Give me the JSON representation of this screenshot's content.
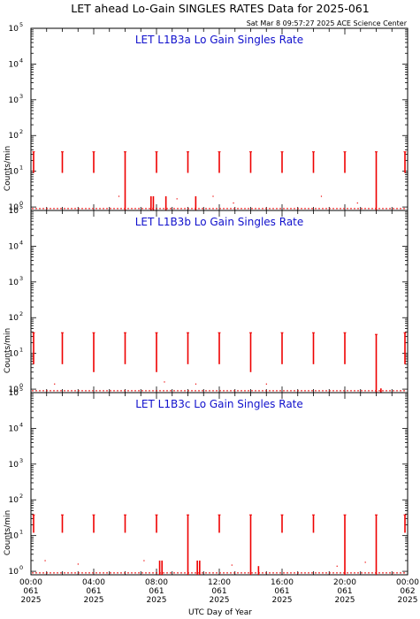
{
  "chart_data": {
    "type": "line",
    "title": "LET ahead Lo-Gain SINGLES RATES Data for 2025-061",
    "subtitle": "Sat Mar  8 09:57:27 2025 ACE Science Center",
    "xlabel": "UTC Day of Year",
    "ylabel": "Counts/min",
    "yscale": "log",
    "ylim": [
      0.8,
      100000
    ],
    "xlim": [
      0,
      24
    ],
    "y_ticks": [
      {
        "base": "10",
        "exp": "0"
      },
      {
        "base": "10",
        "exp": "1"
      },
      {
        "base": "10",
        "exp": "2"
      },
      {
        "base": "10",
        "exp": "3"
      },
      {
        "base": "10",
        "exp": "4"
      },
      {
        "base": "10",
        "exp": "5"
      }
    ],
    "x_ticks": [
      {
        "time": "00:00",
        "doy": "061",
        "year": "2025"
      },
      {
        "time": "04:00",
        "doy": "061",
        "year": "2025"
      },
      {
        "time": "08:00",
        "doy": "061",
        "year": "2025"
      },
      {
        "time": "12:00",
        "doy": "061",
        "year": "2025"
      },
      {
        "time": "16:00",
        "doy": "061",
        "year": "2025"
      },
      {
        "time": "20:00",
        "doy": "061",
        "year": "2025"
      },
      {
        "time": "00:00",
        "doy": "062",
        "year": "2025"
      }
    ],
    "series_color": "#ee0000",
    "label_color": "#1010cc",
    "panels": [
      {
        "label": "LET L1B3a Lo Gain Singles Rate",
        "spikes": [
          {
            "x": 0.1,
            "top": 35,
            "bottom": 9
          },
          {
            "x": 2.0,
            "top": 35,
            "bottom": 9
          },
          {
            "x": 4.0,
            "top": 35,
            "bottom": 9
          },
          {
            "x": 6.0,
            "top": 35,
            "bottom": 0.8
          },
          {
            "x": 8.0,
            "top": 35,
            "bottom": 9
          },
          {
            "x": 10.0,
            "top": 35,
            "bottom": 9
          },
          {
            "x": 12.0,
            "top": 35,
            "bottom": 9
          },
          {
            "x": 14.0,
            "top": 35,
            "bottom": 9
          },
          {
            "x": 16.0,
            "top": 35,
            "bottom": 9
          },
          {
            "x": 18.0,
            "top": 35,
            "bottom": 9
          },
          {
            "x": 20.0,
            "top": 35,
            "bottom": 9
          },
          {
            "x": 22.0,
            "top": 35,
            "bottom": 0.8
          },
          {
            "x": 24.0,
            "top": 35,
            "bottom": 9
          }
        ],
        "low_bars": [
          {
            "x": 7.65,
            "top": 2
          },
          {
            "x": 7.8,
            "top": 2
          },
          {
            "x": 8.6,
            "top": 2
          },
          {
            "x": 10.5,
            "top": 2
          }
        ],
        "dots": [
          {
            "x": 5.6,
            "y": 2
          },
          {
            "x": 9.3,
            "y": 1.7
          },
          {
            "x": 11.6,
            "y": 2
          },
          {
            "x": 12.9,
            "y": 1.3
          },
          {
            "x": 18.5,
            "y": 2
          },
          {
            "x": 20.8,
            "y": 1.3
          }
        ]
      },
      {
        "label": "LET L1B3b Lo Gain Singles Rate",
        "spikes": [
          {
            "x": 0.1,
            "top": 38,
            "bottom": 5
          },
          {
            "x": 2.0,
            "top": 38,
            "bottom": 5
          },
          {
            "x": 4.0,
            "top": 38,
            "bottom": 3
          },
          {
            "x": 6.0,
            "top": 38,
            "bottom": 5
          },
          {
            "x": 8.0,
            "top": 38,
            "bottom": 3
          },
          {
            "x": 10.0,
            "top": 38,
            "bottom": 5
          },
          {
            "x": 12.0,
            "top": 38,
            "bottom": 5
          },
          {
            "x": 14.0,
            "top": 38,
            "bottom": 3
          },
          {
            "x": 16.0,
            "top": 38,
            "bottom": 5
          },
          {
            "x": 18.0,
            "top": 38,
            "bottom": 5
          },
          {
            "x": 20.0,
            "top": 38,
            "bottom": 5
          },
          {
            "x": 22.0,
            "top": 34,
            "bottom": 0.8
          },
          {
            "x": 24.0,
            "top": 38,
            "bottom": 5
          }
        ],
        "low_bars": [
          {
            "x": 22.3,
            "top": 1.05
          }
        ],
        "dots": [
          {
            "x": 1.5,
            "y": 1.4
          },
          {
            "x": 8.5,
            "y": 1.6
          },
          {
            "x": 10.5,
            "y": 1.4
          },
          {
            "x": 15.0,
            "y": 1.4
          }
        ]
      },
      {
        "label": "LET L1B3c Lo Gain Singles Rate",
        "spikes": [
          {
            "x": 0.1,
            "top": 38,
            "bottom": 12
          },
          {
            "x": 2.0,
            "top": 38,
            "bottom": 12
          },
          {
            "x": 4.0,
            "top": 38,
            "bottom": 12
          },
          {
            "x": 6.0,
            "top": 38,
            "bottom": 12
          },
          {
            "x": 8.0,
            "top": 38,
            "bottom": 12
          },
          {
            "x": 10.0,
            "top": 38,
            "bottom": 0.8
          },
          {
            "x": 12.0,
            "top": 38,
            "bottom": 12
          },
          {
            "x": 14.0,
            "top": 38,
            "bottom": 0.8
          },
          {
            "x": 16.0,
            "top": 38,
            "bottom": 12
          },
          {
            "x": 18.0,
            "top": 38,
            "bottom": 12
          },
          {
            "x": 20.0,
            "top": 38,
            "bottom": 0.8
          },
          {
            "x": 22.0,
            "top": 38,
            "bottom": 0.8
          },
          {
            "x": 24.0,
            "top": 38,
            "bottom": 12
          }
        ],
        "low_bars": [
          {
            "x": 8.2,
            "top": 2
          },
          {
            "x": 8.35,
            "top": 2
          },
          {
            "x": 10.6,
            "top": 2
          },
          {
            "x": 10.75,
            "top": 2
          },
          {
            "x": 14.5,
            "top": 1.4
          }
        ],
        "dots": [
          {
            "x": 0.9,
            "y": 2
          },
          {
            "x": 3.0,
            "y": 1.6
          },
          {
            "x": 7.2,
            "y": 2
          },
          {
            "x": 12.8,
            "y": 1.5
          },
          {
            "x": 19.5,
            "y": 1.4
          },
          {
            "x": 21.3,
            "y": 1.8
          }
        ]
      }
    ]
  }
}
